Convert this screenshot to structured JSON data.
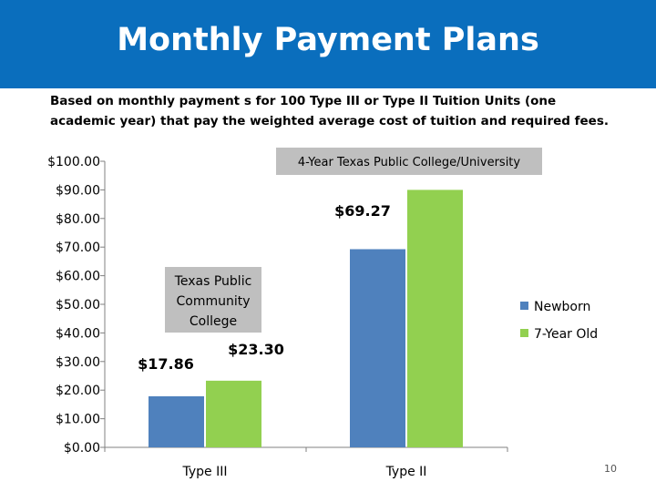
{
  "slide": {
    "title": "Monthly Payment Plans",
    "subtitle": "Based on monthly payment s for 100 Type III or Type II Tuition Units (one academic year) that pay the weighted average cost of tuition and required fees.",
    "page_number": "10"
  },
  "colors": {
    "header": "#0a6ebd",
    "newborn": "#4f81bd",
    "seven_year_old": "#92d050",
    "callout": "#bfbfbf"
  },
  "chart_data": {
    "type": "bar",
    "categories": [
      "Type III",
      "Type II"
    ],
    "series": [
      {
        "name": "Newborn",
        "values": [
          17.86,
          69.27
        ]
      },
      {
        "name": "7-Year Old",
        "values": [
          23.3,
          90.0
        ]
      }
    ],
    "ylim": [
      0,
      100
    ],
    "yticks": [
      "$0.00",
      "$10.00",
      "$20.00",
      "$30.00",
      "$40.00",
      "$50.00",
      "$60.00",
      "$70.00",
      "$80.00",
      "$90.00",
      "$100.00"
    ],
    "data_labels": [
      "$17.86",
      "$23.30",
      "$69.27"
    ],
    "annotations": [
      "Texas Public Community College",
      "4-Year Texas Public College/University"
    ],
    "legend_position": "right",
    "grid": false
  }
}
